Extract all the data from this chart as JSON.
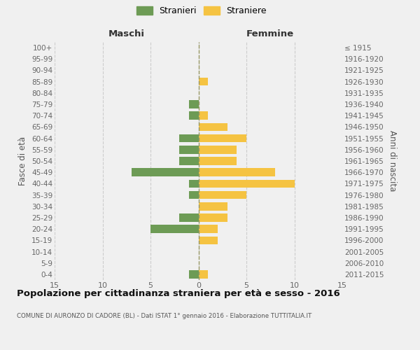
{
  "age_groups": [
    "0-4",
    "5-9",
    "10-14",
    "15-19",
    "20-24",
    "25-29",
    "30-34",
    "35-39",
    "40-44",
    "45-49",
    "50-54",
    "55-59",
    "60-64",
    "65-69",
    "70-74",
    "75-79",
    "80-84",
    "85-89",
    "90-94",
    "95-99",
    "100+"
  ],
  "birth_years": [
    "2011-2015",
    "2006-2010",
    "2001-2005",
    "1996-2000",
    "1991-1995",
    "1986-1990",
    "1981-1985",
    "1976-1980",
    "1971-1975",
    "1966-1970",
    "1961-1965",
    "1956-1960",
    "1951-1955",
    "1946-1950",
    "1941-1945",
    "1936-1940",
    "1931-1935",
    "1926-1930",
    "1921-1925",
    "1916-1920",
    "≤ 1915"
  ],
  "maschi": [
    1,
    0,
    0,
    0,
    5,
    2,
    0,
    1,
    1,
    7,
    2,
    2,
    2,
    0,
    1,
    1,
    0,
    0,
    0,
    0,
    0
  ],
  "femmine": [
    1,
    0,
    0,
    2,
    2,
    3,
    3,
    5,
    10,
    8,
    4,
    4,
    5,
    3,
    1,
    0,
    0,
    1,
    0,
    0,
    0
  ],
  "maschi_color": "#6d9b55",
  "femmine_color": "#f5c342",
  "background_color": "#f0f0f0",
  "grid_color": "#cccccc",
  "title": "Popolazione per cittadinanza straniera per età e sesso - 2016",
  "subtitle": "COMUNE DI AURONZO DI CADORE (BL) - Dati ISTAT 1° gennaio 2016 - Elaborazione TUTTITALIA.IT",
  "xlabel_left": "Maschi",
  "xlabel_right": "Femmine",
  "ylabel_left": "Fasce di età",
  "ylabel_right": "Anni di nascita",
  "legend_maschi": "Stranieri",
  "legend_femmine": "Straniere",
  "xlim": [
    -15,
    15
  ],
  "xticks": [
    -15,
    -10,
    -5,
    0,
    5,
    10,
    15
  ],
  "xtick_labels": [
    "15",
    "10",
    "5",
    "0",
    "5",
    "10",
    "15"
  ],
  "dashed_color": "#999966"
}
